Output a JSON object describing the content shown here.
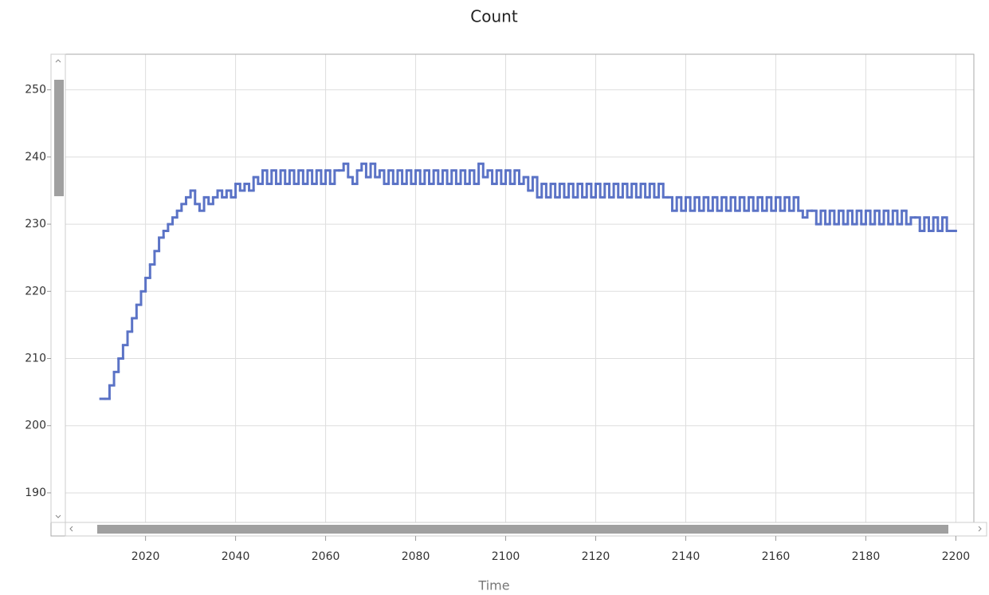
{
  "chart_data": {
    "type": "line",
    "title": "Count",
    "x_label": "Time",
    "x": [
      2010,
      2011,
      2012,
      2013,
      2014,
      2015,
      2016,
      2017,
      2018,
      2019,
      2020,
      2021,
      2022,
      2023,
      2024,
      2025,
      2026,
      2027,
      2028,
      2029,
      2030,
      2031,
      2032,
      2033,
      2034,
      2035,
      2036,
      2037,
      2038,
      2039,
      2040,
      2041,
      2042,
      2043,
      2044,
      2045,
      2046,
      2047,
      2048,
      2049,
      2050,
      2051,
      2052,
      2053,
      2054,
      2055,
      2056,
      2057,
      2058,
      2059,
      2060,
      2061,
      2062,
      2063,
      2064,
      2065,
      2066,
      2067,
      2068,
      2069,
      2070,
      2071,
      2072,
      2073,
      2074,
      2075,
      2076,
      2077,
      2078,
      2079,
      2080,
      2081,
      2082,
      2083,
      2084,
      2085,
      2086,
      2087,
      2088,
      2089,
      2090,
      2091,
      2092,
      2093,
      2094,
      2095,
      2096,
      2097,
      2098,
      2099,
      2100,
      2101,
      2102,
      2103,
      2104,
      2105,
      2106,
      2107,
      2108,
      2109,
      2110,
      2111,
      2112,
      2113,
      2114,
      2115,
      2116,
      2117,
      2118,
      2119,
      2120,
      2121,
      2122,
      2123,
      2124,
      2125,
      2126,
      2127,
      2128,
      2129,
      2130,
      2131,
      2132,
      2133,
      2134,
      2135,
      2136,
      2137,
      2138,
      2139,
      2140,
      2141,
      2142,
      2143,
      2144,
      2145,
      2146,
      2147,
      2148,
      2149,
      2150,
      2151,
      2152,
      2153,
      2154,
      2155,
      2156,
      2157,
      2158,
      2159,
      2160,
      2161,
      2162,
      2163,
      2164,
      2165,
      2166,
      2167,
      2168,
      2169,
      2170,
      2171,
      2172,
      2173,
      2174,
      2175,
      2176,
      2177,
      2178,
      2179,
      2180,
      2181,
      2182,
      2183,
      2184,
      2185,
      2186,
      2187,
      2188,
      2189,
      2190,
      2191,
      2192,
      2193,
      2194,
      2195,
      2196,
      2197,
      2198,
      2199
    ],
    "series": [
      {
        "color": "#5b73c6",
        "values": [
          204,
          204,
          206,
          208,
          210,
          212,
          214,
          216,
          218,
          220,
          222,
          224,
          226,
          228,
          229,
          230,
          231,
          232,
          233,
          234,
          235,
          233,
          232,
          234,
          233,
          234,
          235,
          234,
          235,
          234,
          236,
          235,
          236,
          235,
          237,
          236,
          238,
          236,
          238,
          236,
          238,
          236,
          238,
          236,
          238,
          236,
          238,
          236,
          238,
          236,
          238,
          236,
          238,
          238,
          239,
          237,
          236,
          238,
          239,
          237,
          239,
          237,
          238,
          236,
          238,
          236,
          238,
          236,
          238,
          236,
          238,
          236,
          238,
          236,
          238,
          236,
          238,
          236,
          238,
          236,
          238,
          236,
          238,
          236,
          239,
          237,
          238,
          236,
          238,
          236,
          238,
          236,
          238,
          236,
          237,
          235,
          237,
          234,
          236,
          234,
          236,
          234,
          236,
          234,
          236,
          234,
          236,
          234,
          236,
          234,
          236,
          234,
          236,
          234,
          236,
          234,
          236,
          234,
          236,
          234,
          236,
          234,
          236,
          234,
          236,
          234,
          234,
          232,
          234,
          232,
          234,
          232,
          234,
          232,
          234,
          232,
          234,
          232,
          234,
          232,
          234,
          232,
          234,
          232,
          234,
          232,
          234,
          232,
          234,
          232,
          234,
          232,
          234,
          232,
          234,
          232,
          231,
          232,
          232,
          230,
          232,
          230,
          232,
          230,
          232,
          230,
          232,
          230,
          232,
          230,
          232,
          230,
          232,
          230,
          232,
          230,
          232,
          230,
          232,
          230,
          231,
          231,
          229,
          231,
          229,
          231,
          229,
          231,
          229,
          229
        ]
      }
    ],
    "xlim": [
      1999,
      2204
    ],
    "xticks": [
      2020,
      2040,
      2060,
      2080,
      2100,
      2120,
      2140,
      2160,
      2180,
      2200
    ],
    "ylim": [
      185.6,
      255.3
    ],
    "yticks": [
      190,
      200,
      210,
      220,
      230,
      240,
      250
    ],
    "grid": true,
    "step": true
  }
}
